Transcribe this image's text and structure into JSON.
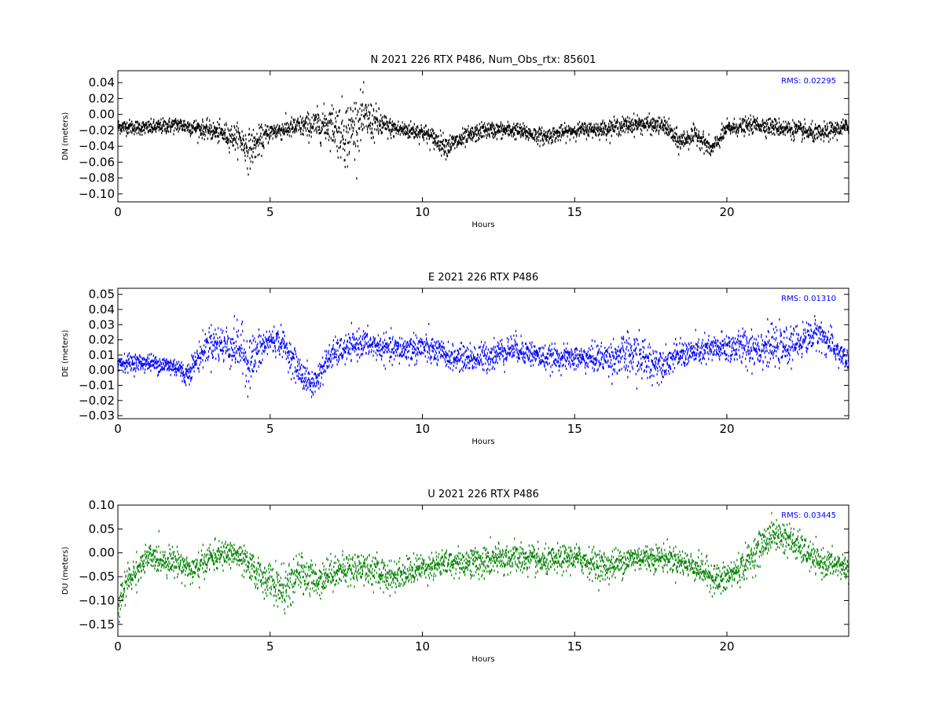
{
  "chart_data": [
    {
      "type": "scatter",
      "title": "N 2021 226 RTX  P486, Num_Obs_rtx: 85601",
      "xlabel": "Hours",
      "ylabel": "DN (meters)",
      "xlim": [
        0,
        24
      ],
      "ylim": [
        -0.11,
        0.055
      ],
      "xticks": [
        0,
        5,
        10,
        15,
        20
      ],
      "yticks": [
        -0.1,
        -0.08,
        -0.06,
        -0.04,
        -0.02,
        0.0,
        0.02,
        0.04
      ],
      "ytick_labels": [
        "−0.10",
        "−0.08",
        "−0.06",
        "−0.04",
        "−0.02",
        "0.00",
        "0.02",
        "0.04"
      ],
      "color": "#000000",
      "annotation": "RMS:  0.02295",
      "annotation_color": "#0000ff",
      "series": [
        {
          "x": [
            0,
            1,
            2,
            3,
            4,
            4.3,
            5,
            6,
            7,
            7.5,
            8,
            9,
            10,
            10.8,
            12,
            13,
            14,
            15,
            16,
            17,
            18,
            18.4,
            19,
            19.5,
            20,
            21,
            22,
            23,
            24
          ],
          "y": [
            -0.015,
            -0.017,
            -0.013,
            -0.02,
            -0.03,
            -0.045,
            -0.022,
            -0.015,
            -0.012,
            -0.025,
            -0.005,
            -0.018,
            -0.022,
            -0.04,
            -0.02,
            -0.02,
            -0.028,
            -0.02,
            -0.018,
            -0.012,
            -0.015,
            -0.035,
            -0.025,
            -0.045,
            -0.018,
            -0.013,
            -0.018,
            -0.025,
            -0.015
          ],
          "spread": [
            0.008,
            0.008,
            0.009,
            0.01,
            0.015,
            0.022,
            0.01,
            0.012,
            0.022,
            0.038,
            0.028,
            0.01,
            0.01,
            0.012,
            0.009,
            0.009,
            0.009,
            0.008,
            0.009,
            0.01,
            0.009,
            0.012,
            0.01,
            0.01,
            0.009,
            0.009,
            0.01,
            0.01,
            0.009
          ]
        }
      ]
    },
    {
      "type": "scatter",
      "title": "E 2021 226 RTX  P486",
      "xlabel": "Hours",
      "ylabel": "DE (meters)",
      "xlim": [
        0,
        24
      ],
      "ylim": [
        -0.032,
        0.054
      ],
      "xticks": [
        0,
        5,
        10,
        15,
        20
      ],
      "yticks": [
        -0.03,
        -0.02,
        -0.01,
        0.0,
        0.01,
        0.02,
        0.03,
        0.04,
        0.05
      ],
      "ytick_labels": [
        "−0.03",
        "−0.02",
        "−0.01",
        "0.00",
        "0.01",
        "0.02",
        "0.03",
        "0.04",
        "0.05"
      ],
      "color": "#0000ff",
      "annotation": "RMS:  0.01310",
      "annotation_color": "#0000ff",
      "series": [
        {
          "x": [
            0,
            1,
            2,
            2.2,
            3,
            4,
            4.3,
            5,
            5.4,
            6,
            6.4,
            7,
            8,
            9,
            10,
            11,
            12,
            13,
            14,
            15,
            16,
            17,
            17.5,
            18,
            18.4,
            19,
            20,
            21,
            22,
            23,
            24
          ],
          "y": [
            0.005,
            0.005,
            0.002,
            -0.004,
            0.018,
            0.015,
            0.005,
            0.02,
            0.018,
            -0.002,
            -0.01,
            0.01,
            0.018,
            0.013,
            0.015,
            0.008,
            0.008,
            0.015,
            0.008,
            0.008,
            0.008,
            0.01,
            0.005,
            0.005,
            0.01,
            0.012,
            0.015,
            0.015,
            0.015,
            0.025,
            0.005
          ],
          "spread": [
            0.005,
            0.005,
            0.006,
            0.006,
            0.01,
            0.014,
            0.016,
            0.008,
            0.008,
            0.009,
            0.008,
            0.008,
            0.008,
            0.008,
            0.009,
            0.007,
            0.009,
            0.008,
            0.007,
            0.007,
            0.009,
            0.014,
            0.012,
            0.008,
            0.008,
            0.008,
            0.009,
            0.012,
            0.01,
            0.009,
            0.007
          ]
        }
      ]
    },
    {
      "type": "scatter",
      "title": "U 2021 226 RTX  P486",
      "xlabel": "Hours",
      "ylabel": "DU (meters)",
      "xlim": [
        0,
        24
      ],
      "ylim": [
        -0.175,
        0.1
      ],
      "xticks": [
        0,
        5,
        10,
        15,
        20
      ],
      "yticks": [
        -0.15,
        -0.1,
        -0.05,
        0.0,
        0.05,
        0.1
      ],
      "ytick_labels": [
        "−0.15",
        "−0.10",
        "−0.05",
        "0.00",
        "0.05",
        "0.10"
      ],
      "color": "#008000",
      "annotation": "RMS:  0.03445",
      "annotation_color": "#0000ff",
      "series": [
        {
          "x": [
            0,
            0.3,
            1,
            2,
            2.5,
            3,
            3.8,
            4.5,
            5,
            5.5,
            6,
            6.5,
            7,
            8,
            9,
            10,
            11,
            12,
            13,
            14,
            15,
            16,
            17,
            18,
            19,
            19.8,
            20.5,
            21.5,
            22,
            23,
            24
          ],
          "y": [
            -0.12,
            -0.06,
            -0.01,
            -0.02,
            -0.04,
            -0.01,
            0.0,
            -0.04,
            -0.06,
            -0.08,
            -0.04,
            -0.06,
            -0.04,
            -0.03,
            -0.05,
            -0.03,
            -0.02,
            -0.02,
            -0.01,
            -0.02,
            -0.01,
            -0.03,
            -0.01,
            -0.01,
            -0.03,
            -0.06,
            -0.03,
            0.04,
            0.03,
            -0.02,
            -0.03
          ],
          "spread": [
            0.03,
            0.03,
            0.025,
            0.025,
            0.03,
            0.025,
            0.025,
            0.03,
            0.035,
            0.04,
            0.035,
            0.035,
            0.03,
            0.03,
            0.03,
            0.025,
            0.025,
            0.03,
            0.03,
            0.025,
            0.025,
            0.03,
            0.025,
            0.025,
            0.025,
            0.03,
            0.03,
            0.03,
            0.03,
            0.025,
            0.025
          ]
        }
      ]
    }
  ]
}
